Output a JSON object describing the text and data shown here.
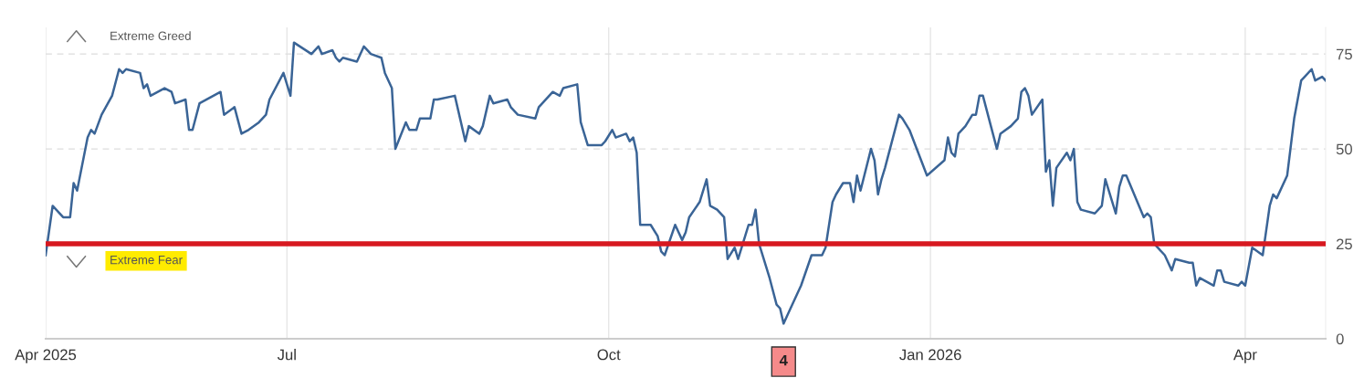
{
  "chart_data": {
    "type": "line",
    "x": [
      "2025-04-23",
      "2025-04-25",
      "2025-04-28",
      "2025-04-30",
      "2025-05-01",
      "2025-05-02",
      "2025-05-05",
      "2025-05-06",
      "2025-05-07",
      "2025-05-09",
      "2025-05-12",
      "2025-05-14",
      "2025-05-15",
      "2025-05-16",
      "2025-05-20",
      "2025-05-21",
      "2025-05-22",
      "2025-05-23",
      "2025-05-27",
      "2025-05-29",
      "2025-05-30",
      "2025-06-02",
      "2025-06-03",
      "2025-06-04",
      "2025-06-06",
      "2025-06-12",
      "2025-06-13",
      "2025-06-16",
      "2025-06-18",
      "2025-06-20",
      "2025-06-23",
      "2025-06-25",
      "2025-06-26",
      "2025-06-30",
      "2025-07-02",
      "2025-07-03",
      "2025-07-08",
      "2025-07-10",
      "2025-07-11",
      "2025-07-14",
      "2025-07-15",
      "2025-07-16",
      "2025-07-17",
      "2025-07-21",
      "2025-07-23",
      "2025-07-25",
      "2025-07-28",
      "2025-07-29",
      "2025-07-31",
      "2025-08-01",
      "2025-08-04",
      "2025-08-05",
      "2025-08-07",
      "2025-08-08",
      "2025-08-11",
      "2025-08-12",
      "2025-08-13",
      "2025-08-18",
      "2025-08-21",
      "2025-08-22",
      "2025-08-25",
      "2025-08-26",
      "2025-08-28",
      "2025-08-29",
      "2025-09-02",
      "2025-09-03",
      "2025-09-05",
      "2025-09-10",
      "2025-09-11",
      "2025-09-15",
      "2025-09-17",
      "2025-09-18",
      "2025-09-22",
      "2025-09-23",
      "2025-09-24",
      "2025-09-25",
      "2025-09-26",
      "2025-09-29",
      "2025-09-30",
      "2025-10-02",
      "2025-10-03",
      "2025-10-06",
      "2025-10-07",
      "2025-10-08",
      "2025-10-09",
      "2025-10-10",
      "2025-10-13",
      "2025-10-15",
      "2025-10-16",
      "2025-10-17",
      "2025-10-20",
      "2025-10-22",
      "2025-10-23",
      "2025-10-24",
      "2025-10-27",
      "2025-10-29",
      "2025-10-30",
      "2025-11-01",
      "2025-11-03",
      "2025-11-04",
      "2025-11-06",
      "2025-11-07",
      "2025-11-10",
      "2025-11-11",
      "2025-11-12",
      "2025-11-13",
      "2025-11-16",
      "2025-11-18",
      "2025-11-19",
      "2025-11-20",
      "2025-11-21",
      "2025-11-24",
      "2025-11-25",
      "2025-11-28",
      "2025-12-01",
      "2025-12-02",
      "2025-12-04",
      "2025-12-05",
      "2025-12-07",
      "2025-12-09",
      "2025-12-10",
      "2025-12-11",
      "2025-12-12",
      "2025-12-15",
      "2025-12-16",
      "2025-12-17",
      "2025-12-18",
      "2025-12-19",
      "2025-12-23",
      "2025-12-24",
      "2025-12-26",
      "2025-12-31",
      "2026-01-05",
      "2026-01-06",
      "2026-01-07",
      "2026-01-08",
      "2026-01-09",
      "2026-01-11",
      "2026-01-13",
      "2026-01-14",
      "2026-01-15",
      "2026-01-16",
      "2026-01-20",
      "2026-01-21",
      "2026-01-24",
      "2026-01-26",
      "2026-01-27",
      "2026-01-28",
      "2026-01-29",
      "2026-01-30",
      "2026-02-02",
      "2026-02-03",
      "2026-02-04",
      "2026-02-05",
      "2026-02-06",
      "2026-02-09",
      "2026-02-10",
      "2026-02-11",
      "2026-02-12",
      "2026-02-13",
      "2026-02-17",
      "2026-02-19",
      "2026-02-20",
      "2026-02-23",
      "2026-02-24",
      "2026-02-25",
      "2026-02-26",
      "2026-03-03",
      "2026-03-04",
      "2026-03-05",
      "2026-03-06",
      "2026-03-09",
      "2026-03-11",
      "2026-03-12",
      "2026-03-16",
      "2026-03-17",
      "2026-03-18",
      "2026-03-19",
      "2026-03-23",
      "2026-03-24",
      "2026-03-25",
      "2026-03-26",
      "2026-03-30",
      "2026-03-31",
      "2026-04-01",
      "2026-04-03",
      "2026-04-06",
      "2026-04-08",
      "2026-04-09",
      "2026-04-10",
      "2026-04-13",
      "2026-04-15",
      "2026-04-17",
      "2026-04-18",
      "2026-04-20",
      "2026-04-21",
      "2026-04-23",
      "2026-04-24"
    ],
    "series": [
      {
        "color": "#3a6496",
        "values": [
          22,
          35,
          32,
          32,
          41,
          39,
          53,
          55,
          54,
          59,
          64,
          71,
          70,
          71,
          70,
          66,
          67,
          64,
          66,
          65,
          62,
          63,
          55,
          55,
          62,
          65,
          59,
          61,
          54,
          55,
          57,
          59,
          63,
          70,
          64,
          78,
          75,
          77,
          75,
          76,
          74,
          73,
          74,
          73,
          77,
          75,
          74,
          70,
          66,
          50,
          57,
          55,
          55,
          58,
          58,
          63,
          63,
          64,
          52,
          56,
          54,
          56,
          64,
          62,
          63,
          61,
          59,
          58,
          61,
          65,
          64,
          66,
          67,
          57,
          54,
          51,
          51,
          51,
          52,
          55,
          53,
          54,
          52,
          53,
          49,
          30,
          30,
          27,
          23,
          22,
          30,
          26,
          28,
          32,
          36,
          42,
          35,
          34,
          32,
          21,
          24,
          21,
          30,
          30,
          34,
          25,
          16,
          9,
          8,
          4,
          6,
          12,
          14,
          22,
          22,
          24,
          36,
          38,
          41,
          41,
          36,
          43,
          39,
          50,
          47,
          38,
          42,
          45,
          59,
          58,
          55,
          43,
          47,
          53,
          49,
          48,
          54,
          56,
          59,
          59,
          64,
          64,
          50,
          54,
          56,
          58,
          65,
          66,
          64,
          59,
          63,
          44,
          47,
          35,
          45,
          49,
          47,
          50,
          36,
          34,
          33,
          35,
          42,
          33,
          40,
          43,
          43,
          32,
          33,
          32,
          25,
          22,
          18,
          21,
          20,
          20,
          14,
          16,
          14,
          18,
          18,
          15,
          14,
          15,
          14,
          24,
          22,
          35,
          38,
          37,
          43,
          58,
          68,
          69,
          71,
          68,
          69,
          68
        ]
      }
    ],
    "xlim": [
      "2025-04-23",
      "2026-04-24"
    ],
    "xticks": [
      {
        "value": "2025-04-23",
        "label": "Apr 2025"
      },
      {
        "value": "2025-07-01",
        "label": "Jul"
      },
      {
        "value": "2025-10-01",
        "label": "Oct"
      },
      {
        "value": "2026-01-01",
        "label": "Jan 2026"
      },
      {
        "value": "2026-04-01",
        "label": "Apr"
      }
    ],
    "ylim": [
      0,
      82
    ],
    "yticks": [
      0,
      25,
      50,
      75
    ],
    "grid": true,
    "legend": false,
    "marker": "none",
    "line_style": "solid",
    "ref_lines": [
      {
        "axis": "y",
        "value": 25,
        "color": "#d71920",
        "line_style": "solid"
      }
    ],
    "annotations": [
      "Extreme Greed",
      "Extreme Fear",
      {
        "text": "4",
        "x": "2025-11-20",
        "y": 4
      }
    ]
  }
}
